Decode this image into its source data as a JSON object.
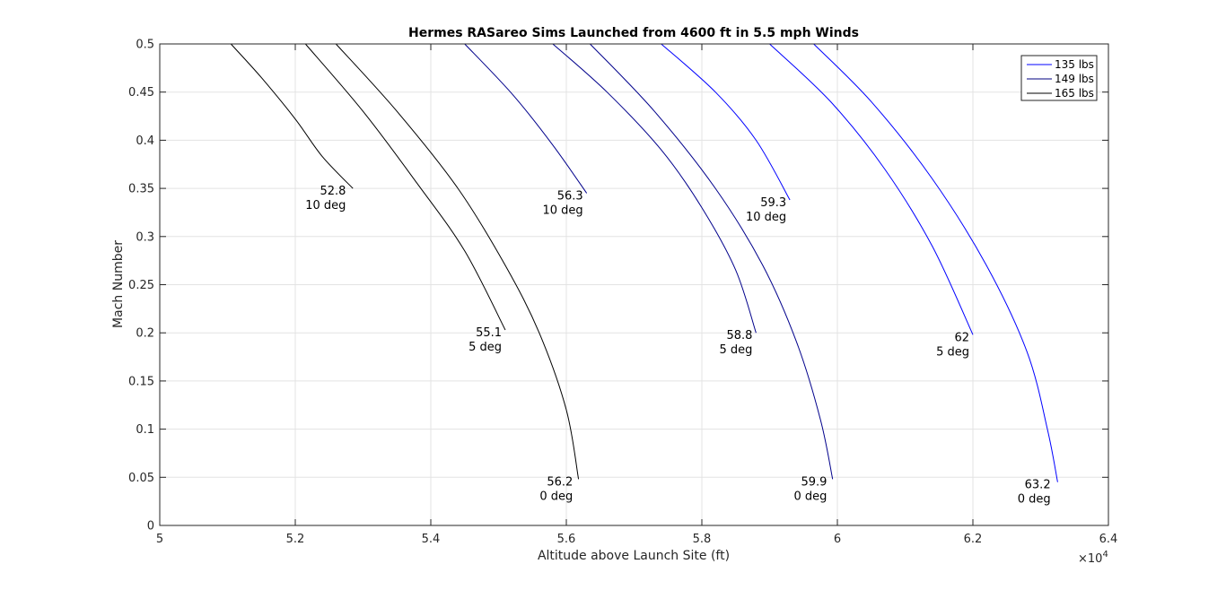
{
  "chart_data": {
    "type": "line",
    "title": "Hermes RASareo Sims Launched from 4600 ft in 5.5 mph Winds",
    "xlabel": "Altitude above Launch Site (ft)",
    "ylabel": "Mach Number",
    "x_exponent_label": "×10",
    "x_exponent_power": "4",
    "xlim": [
      50000,
      64000
    ],
    "ylim": [
      0,
      0.5
    ],
    "x_scale_factor": 10000,
    "xticks": [
      50000,
      52000,
      54000,
      56000,
      58000,
      60000,
      62000,
      64000
    ],
    "xtick_labels": [
      "5",
      "5.2",
      "5.4",
      "5.6",
      "5.8",
      "6",
      "6.2",
      "6.4"
    ],
    "yticks": [
      0,
      0.05,
      0.1,
      0.15,
      0.2,
      0.25,
      0.3,
      0.35,
      0.4,
      0.45,
      0.5
    ],
    "ytick_labels": [
      "0",
      "0.05",
      "0.1",
      "0.15",
      "0.2",
      "0.25",
      "0.3",
      "0.35",
      "0.4",
      "0.45",
      "0.5"
    ],
    "grid": true,
    "legend_position": "top-right",
    "legend": [
      {
        "label": "135 lbs",
        "color": "#0000ff"
      },
      {
        "label": "149 lbs",
        "color": "#000080"
      },
      {
        "label": "165 lbs",
        "color": "#000000"
      }
    ],
    "series": [
      {
        "name": "165 lbs",
        "color": "#000000",
        "x": [
          51050,
          51500,
          52000,
          52400,
          52850
        ],
        "y": [
          0.5,
          0.465,
          0.422,
          0.383,
          0.35
        ]
      },
      {
        "name": "165 lbs",
        "color": "#000000",
        "x": [
          52150,
          53000,
          53800,
          54500,
          55100
        ],
        "y": [
          0.5,
          0.43,
          0.355,
          0.285,
          0.203
        ]
      },
      {
        "name": "165 lbs",
        "color": "#000000",
        "x": [
          52600,
          53500,
          54400,
          55100,
          55600,
          56000,
          56180
        ],
        "y": [
          0.5,
          0.43,
          0.35,
          0.27,
          0.2,
          0.12,
          0.048
        ]
      },
      {
        "name": "149 lbs",
        "color": "#00008b",
        "x": [
          54500,
          55200,
          55800,
          56300
        ],
        "y": [
          0.5,
          0.448,
          0.395,
          0.345
        ]
      },
      {
        "name": "149 lbs",
        "color": "#00008b",
        "x": [
          55800,
          56600,
          57400,
          58000,
          58500,
          58800
        ],
        "y": [
          0.5,
          0.45,
          0.39,
          0.33,
          0.265,
          0.2
        ]
      },
      {
        "name": "149 lbs",
        "color": "#00008b",
        "x": [
          56350,
          57300,
          58200,
          58900,
          59400,
          59750,
          59930
        ],
        "y": [
          0.5,
          0.43,
          0.35,
          0.27,
          0.19,
          0.11,
          0.048
        ]
      },
      {
        "name": "135 lbs",
        "color": "#0000ff",
        "x": [
          57400,
          58200,
          58800,
          59300
        ],
        "y": [
          0.5,
          0.45,
          0.4,
          0.338
        ]
      },
      {
        "name": "135 lbs",
        "color": "#0000ff",
        "x": [
          59000,
          59900,
          60700,
          61400,
          62000
        ],
        "y": [
          0.5,
          0.44,
          0.37,
          0.29,
          0.198
        ]
      },
      {
        "name": "135 lbs",
        "color": "#0000ff",
        "x": [
          59650,
          60500,
          61400,
          62200,
          62800,
          63100,
          63250
        ],
        "y": [
          0.5,
          0.44,
          0.36,
          0.27,
          0.18,
          0.1,
          0.045
        ]
      }
    ],
    "annotations": [
      {
        "x": 52800,
        "y": 0.35,
        "line1": "52.8",
        "line2": "10 deg"
      },
      {
        "x": 55100,
        "y": 0.203,
        "line1": "55.1",
        "line2": "5 deg"
      },
      {
        "x": 56150,
        "y": 0.048,
        "line1": "56.2",
        "line2": "0 deg"
      },
      {
        "x": 56300,
        "y": 0.345,
        "line1": "56.3",
        "line2": "10 deg"
      },
      {
        "x": 58800,
        "y": 0.2,
        "line1": "58.8",
        "line2": "5 deg"
      },
      {
        "x": 59900,
        "y": 0.048,
        "line1": "59.9",
        "line2": "0 deg"
      },
      {
        "x": 59300,
        "y": 0.338,
        "line1": "59.3",
        "line2": "10 deg"
      },
      {
        "x": 62000,
        "y": 0.198,
        "line1": "62",
        "line2": "5 deg"
      },
      {
        "x": 63200,
        "y": 0.045,
        "line1": "63.2",
        "line2": "0 deg"
      }
    ]
  }
}
